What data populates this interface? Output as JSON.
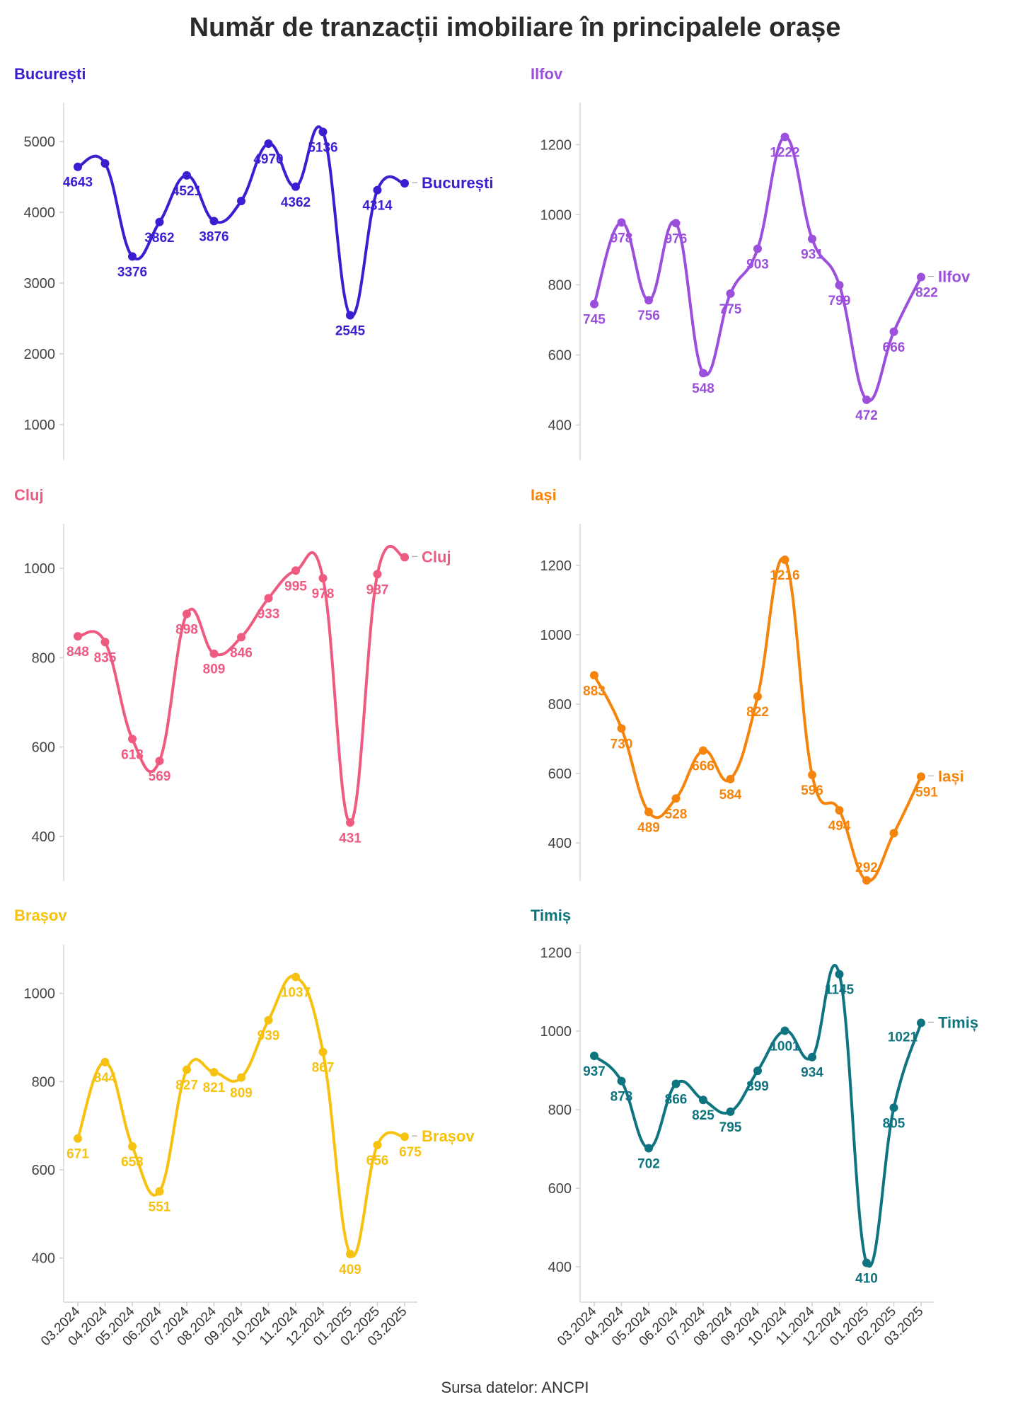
{
  "title": "Număr de tranzacții imobiliare în principalele orașe",
  "source": "Sursa datelor: ANCPI",
  "chart_data": [
    {
      "type": "line",
      "title": "București",
      "color": "#3a1fd1",
      "x": [
        "03.2024",
        "04.2024",
        "05.2024",
        "06.2024",
        "07.2024",
        "08.2024",
        "09.2024",
        "10.2024",
        "11.2024",
        "12.2024",
        "01.2025",
        "02.2025",
        "03.2025"
      ],
      "series": [
        {
          "name": "București",
          "values": [
            4643,
            4690,
            3376,
            3862,
            4521,
            3876,
            4160,
            4970,
            4362,
            5136,
            2545,
            4314,
            4410
          ]
        }
      ],
      "labels": [
        "4643",
        "",
        "3376",
        "3862",
        "4521",
        "3876",
        "",
        "4970",
        "4362",
        "5136",
        "2545",
        "4314",
        ""
      ],
      "yticks": [
        1000,
        2000,
        3000,
        4000,
        5000
      ],
      "ylim": [
        500,
        5550
      ],
      "label_pos": [
        "below",
        "below",
        "below",
        "below",
        "below",
        "below",
        "below",
        "below",
        "below",
        "below",
        "below",
        "below",
        "below"
      ]
    },
    {
      "type": "line",
      "title": "Ilfov",
      "color": "#9b4fdc",
      "x": [
        "03.2024",
        "04.2024",
        "05.2024",
        "06.2024",
        "07.2024",
        "08.2024",
        "09.2024",
        "10.2024",
        "11.2024",
        "12.2024",
        "01.2025",
        "02.2025",
        "03.2025"
      ],
      "series": [
        {
          "name": "Ilfov",
          "values": [
            745,
            978,
            756,
            976,
            548,
            775,
            903,
            1222,
            931,
            799,
            472,
            666,
            822
          ]
        }
      ],
      "labels": [
        "745",
        "978",
        "756",
        "976",
        "548",
        "775",
        "903",
        "1222",
        "931",
        "799",
        "472",
        "666",
        "822"
      ],
      "yticks": [
        400,
        600,
        800,
        1000,
        1200
      ],
      "ylim": [
        300,
        1320
      ],
      "label_pos": [
        "below",
        "below",
        "below",
        "below",
        "below",
        "below",
        "below",
        "below",
        "below",
        "below",
        "below",
        "below",
        "right"
      ]
    },
    {
      "type": "line",
      "title": "Cluj",
      "color": "#ee5a80",
      "x": [
        "03.2024",
        "04.2024",
        "05.2024",
        "06.2024",
        "07.2024",
        "08.2024",
        "09.2024",
        "10.2024",
        "11.2024",
        "12.2024",
        "01.2025",
        "02.2025",
        "03.2025"
      ],
      "series": [
        {
          "name": "Cluj",
          "values": [
            848,
            835,
            618,
            569,
            898,
            809,
            846,
            933,
            995,
            978,
            431,
            987,
            1025
          ]
        }
      ],
      "labels": [
        "848",
        "835",
        "618",
        "569",
        "898",
        "809",
        "846",
        "933",
        "995",
        "978",
        "431",
        "987",
        ""
      ],
      "yticks": [
        400,
        600,
        800,
        1000
      ],
      "ylim": [
        300,
        1100
      ],
      "label_pos": [
        "below",
        "below",
        "below",
        "below",
        "below",
        "below",
        "below",
        "below",
        "below",
        "below",
        "below",
        "below",
        "below"
      ]
    },
    {
      "type": "line",
      "title": "Iași",
      "color": "#f5840c",
      "x": [
        "03.2024",
        "04.2024",
        "05.2024",
        "06.2024",
        "07.2024",
        "08.2024",
        "09.2024",
        "10.2024",
        "11.2024",
        "12.2024",
        "01.2025",
        "02.2025",
        "03.2025"
      ],
      "series": [
        {
          "name": "Iași",
          "values": [
            883,
            730,
            489,
            528,
            666,
            584,
            822,
            1216,
            596,
            494,
            292,
            428,
            591
          ]
        }
      ],
      "labels": [
        "883",
        "730",
        "489",
        "528",
        "666",
        "584",
        "822",
        "1216",
        "596",
        "494",
        "292",
        "",
        "591"
      ],
      "yticks": [
        400,
        600,
        800,
        1000,
        1200
      ],
      "ylim": [
        290,
        1320
      ],
      "label_pos": [
        "below",
        "below",
        "below",
        "below",
        "below",
        "below",
        "below",
        "below",
        "below",
        "below",
        "above",
        "below",
        "right"
      ]
    },
    {
      "type": "line",
      "title": "Brașov",
      "color": "#f6c20f",
      "x": [
        "03.2024",
        "04.2024",
        "05.2024",
        "06.2024",
        "07.2024",
        "08.2024",
        "09.2024",
        "10.2024",
        "11.2024",
        "12.2024",
        "01.2025",
        "02.2025",
        "03.2025"
      ],
      "series": [
        {
          "name": "Brașov",
          "values": [
            671,
            844,
            653,
            551,
            827,
            821,
            809,
            939,
            1037,
            867,
            409,
            656,
            675
          ]
        }
      ],
      "labels": [
        "671",
        "844",
        "653",
        "551",
        "827",
        "821",
        "809",
        "939",
        "1037",
        "867",
        "409",
        "656",
        "675"
      ],
      "yticks": [
        400,
        600,
        800,
        1000
      ],
      "ylim": [
        300,
        1110
      ],
      "label_pos": [
        "below",
        "below",
        "below",
        "below",
        "below",
        "below",
        "below",
        "below",
        "below",
        "below",
        "below",
        "below",
        "right"
      ]
    },
    {
      "type": "line",
      "title": "Timiș",
      "color": "#0e7480",
      "x": [
        "03.2024",
        "04.2024",
        "05.2024",
        "06.2024",
        "07.2024",
        "08.2024",
        "09.2024",
        "10.2024",
        "11.2024",
        "12.2024",
        "01.2025",
        "02.2025",
        "03.2025"
      ],
      "series": [
        {
          "name": "Timiș",
          "values": [
            937,
            873,
            702,
            866,
            825,
            795,
            899,
            1001,
            934,
            1145,
            410,
            805,
            1021
          ]
        }
      ],
      "labels": [
        "937",
        "873",
        "702",
        "866",
        "825",
        "795",
        "899",
        "1001",
        "934",
        "1145",
        "410",
        "805",
        "1021"
      ],
      "yticks": [
        400,
        600,
        800,
        1000,
        1200
      ],
      "ylim": [
        310,
        1220
      ],
      "label_pos": [
        "below",
        "below",
        "below",
        "below",
        "below",
        "below",
        "below",
        "below",
        "below",
        "below",
        "below",
        "below",
        "left"
      ]
    }
  ]
}
